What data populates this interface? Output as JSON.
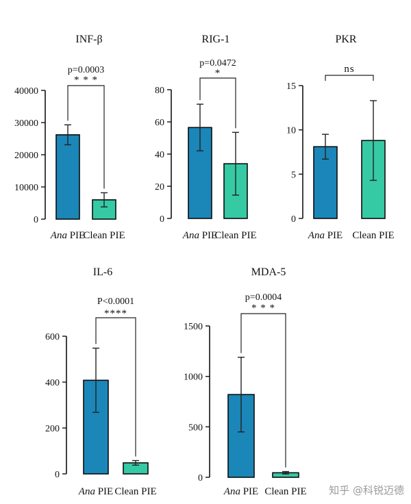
{
  "colors": {
    "ana": "#1b86b8",
    "clean": "#35c9a4",
    "axis": "#111111"
  },
  "watermark": "知乎 @科锐迈德",
  "chart_data": [
    {
      "type": "bar",
      "title": "INF-β",
      "categories": [
        "Ana",
        "Clean PIE"
      ],
      "category_suffix": " PIE",
      "values": [
        26200,
        6000
      ],
      "errors": [
        3100,
        2200
      ],
      "ylim": [
        0,
        40000
      ],
      "yticks": [
        0,
        10000,
        20000,
        30000,
        40000
      ],
      "ytick_labels": [
        "0",
        "10000",
        "20000",
        "30000",
        "40000"
      ],
      "sig": {
        "p": "p=0.0003",
        "stars": "* * *"
      }
    },
    {
      "type": "bar",
      "title": "RIG-1",
      "categories": [
        "Ana",
        "Clean PIE"
      ],
      "category_suffix": " PIE",
      "values": [
        56.5,
        34
      ],
      "errors": [
        14.5,
        19.5
      ],
      "ylim": [
        0,
        80
      ],
      "yticks": [
        0,
        20,
        40,
        60,
        80
      ],
      "ytick_labels": [
        "0",
        "20",
        "40",
        "60",
        "80"
      ],
      "sig": {
        "p": "p=0.0472",
        "stars": "*"
      }
    },
    {
      "type": "bar",
      "title": "PKR",
      "categories": [
        "Ana",
        "Clean PIE"
      ],
      "category_suffix": " PIE",
      "values": [
        8.1,
        8.8
      ],
      "errors": [
        1.4,
        4.5
      ],
      "ylim": [
        0,
        15
      ],
      "yticks": [
        0,
        5,
        10,
        15
      ],
      "ytick_labels": [
        "0",
        "5",
        "10",
        "15"
      ],
      "sig": {
        "p": "",
        "stars": "ns"
      }
    },
    {
      "type": "bar",
      "title": "IL-6",
      "categories": [
        "Ana",
        "Clean PIE"
      ],
      "category_suffix": " PIE",
      "values": [
        408,
        48
      ],
      "errors": [
        140,
        10
      ],
      "ylim": [
        0,
        600
      ],
      "yticks": [
        0,
        200,
        400,
        600
      ],
      "ytick_labels": [
        "0",
        "200",
        "400",
        "600"
      ],
      "sig": {
        "p": "P<0.0001",
        "stars": "****"
      }
    },
    {
      "type": "bar",
      "title": "MDA-5",
      "categories": [
        "Ana",
        "Clean PIE"
      ],
      "category_suffix": " PIE",
      "values": [
        820,
        45
      ],
      "errors": [
        370,
        12
      ],
      "ylim": [
        0,
        1500
      ],
      "yticks": [
        0,
        500,
        1000,
        1500
      ],
      "ytick_labels": [
        "0",
        "500",
        "1000",
        "1500"
      ],
      "sig": {
        "p": "p=0.0004",
        "stars": "* * *"
      }
    }
  ]
}
